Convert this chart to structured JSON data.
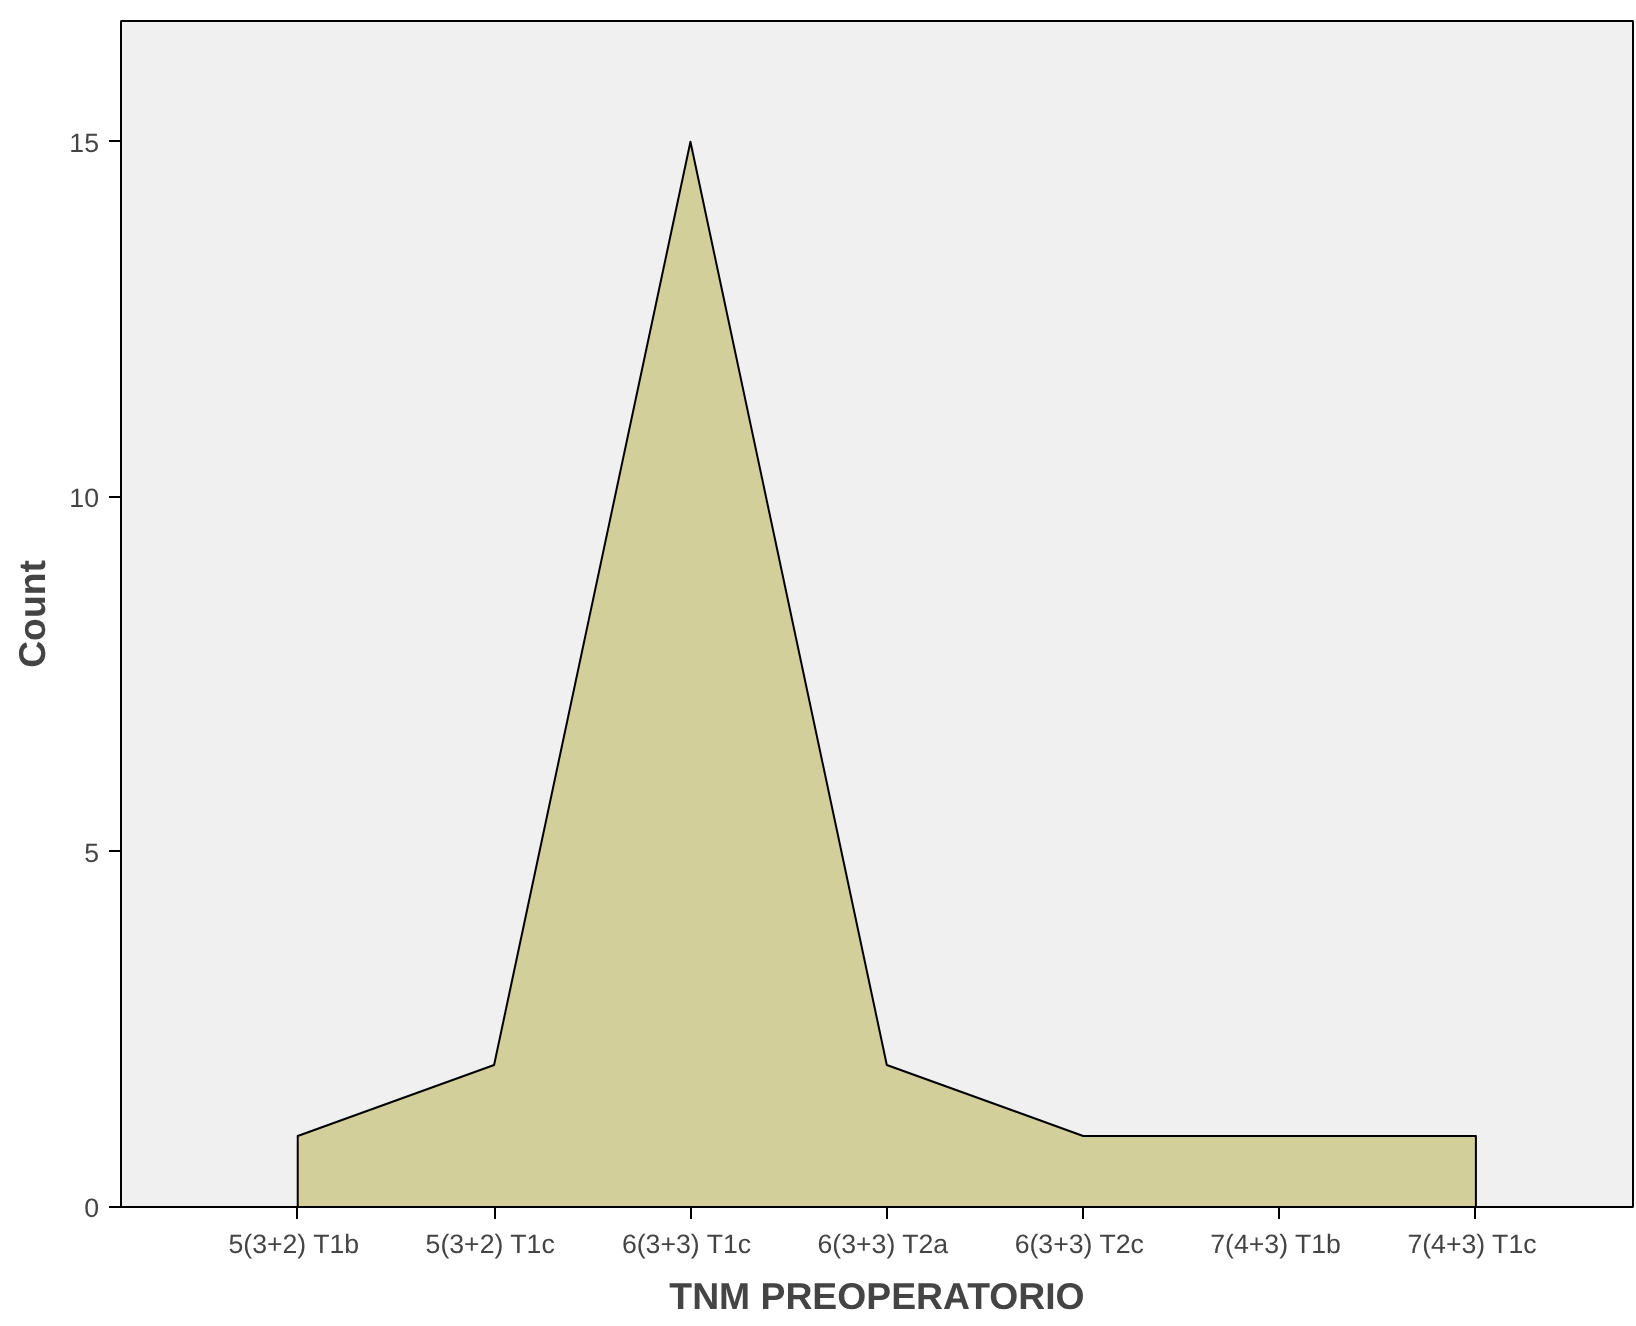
{
  "chart_data": {
    "type": "area",
    "xlabel": "TNM PREOPERATORIO",
    "ylabel": "Count",
    "categories": [
      "5(3+2)  T1b",
      "5(3+2)  T1c",
      "6(3+3)  T1c",
      "6(3+3)  T2a",
      "6(3+3)  T2c",
      "7(4+3)  T1b",
      "7(4+3)  T1c"
    ],
    "values": [
      1,
      2,
      15,
      2,
      1,
      1,
      1
    ],
    "color": "#d3cf9a",
    "ylim": [
      0,
      16.7
    ],
    "yticks": [
      0,
      5,
      10,
      15
    ],
    "grid": false
  }
}
